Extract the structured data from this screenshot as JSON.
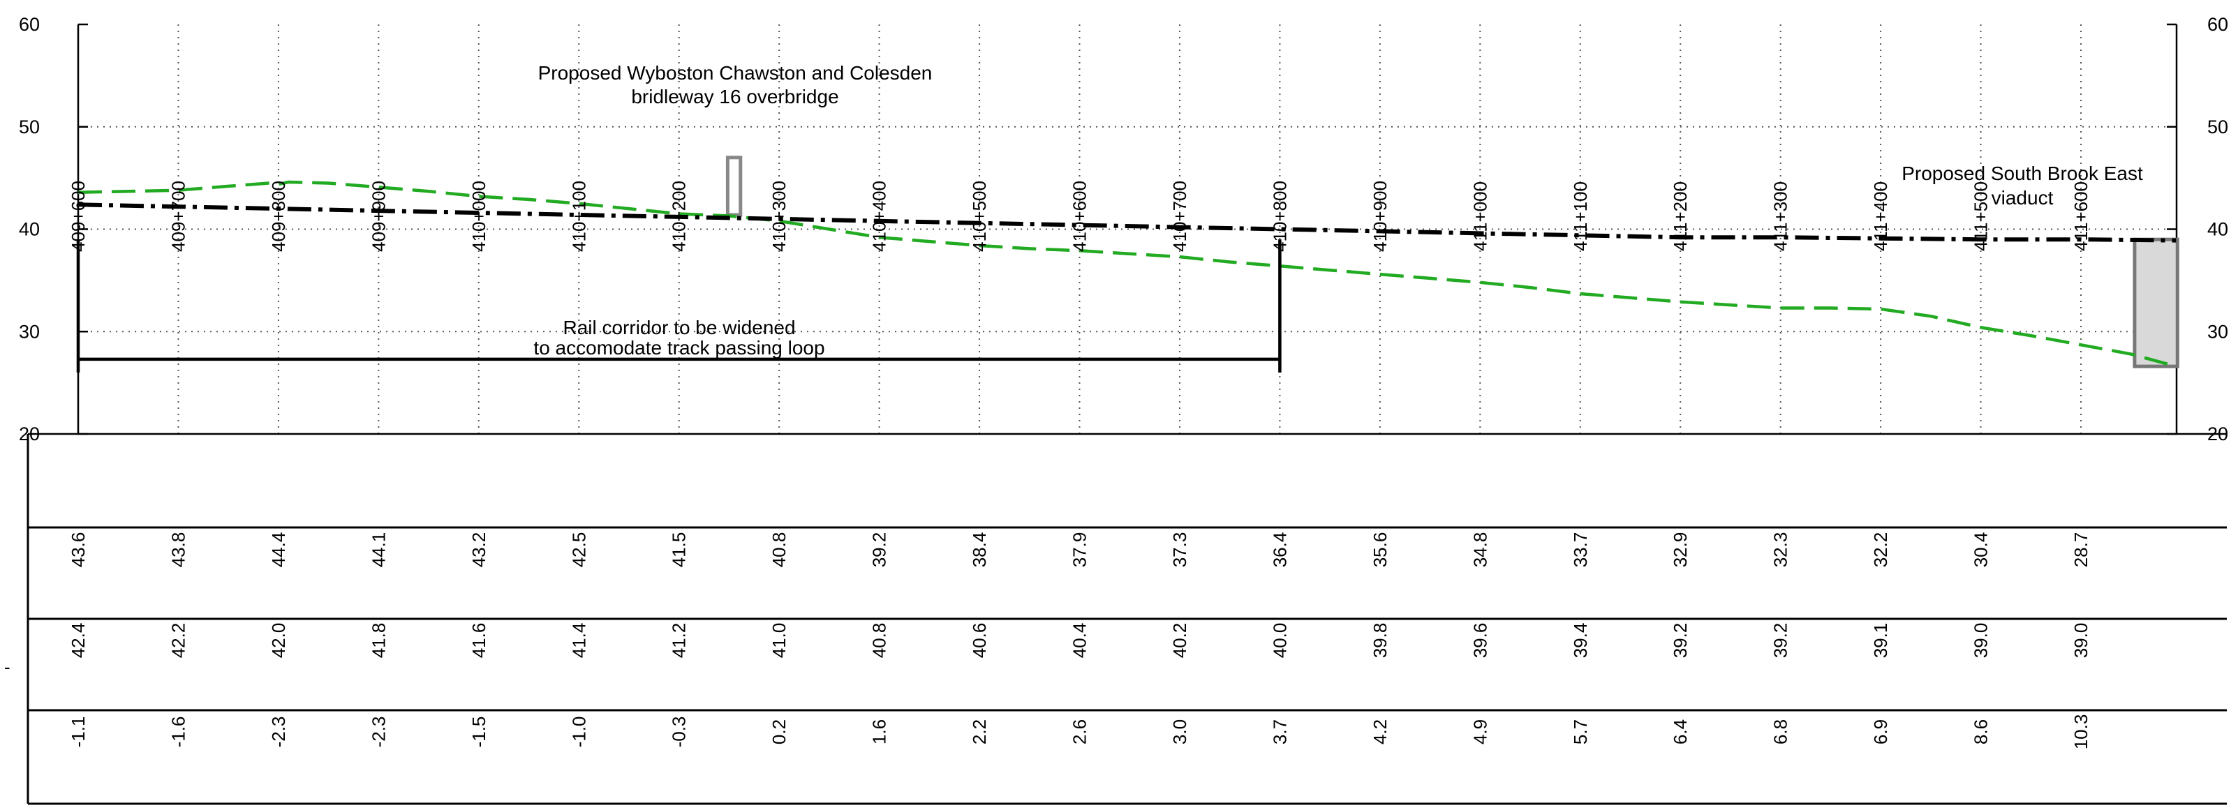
{
  "chart_data": {
    "type": "line",
    "chainages": [
      "409+600",
      "409+700",
      "409+800",
      "409+900",
      "410+000",
      "410+100",
      "410+200",
      "410+300",
      "410+400",
      "410+500",
      "410+600",
      "410+700",
      "410+800",
      "410+900",
      "411+000",
      "411+100",
      "411+200",
      "411+300",
      "411+400",
      "411+500",
      "411+600"
    ],
    "chainage_m": [
      409600,
      409700,
      409800,
      409900,
      410000,
      410100,
      410200,
      410300,
      410400,
      410500,
      410600,
      410700,
      410800,
      410900,
      411000,
      411100,
      411200,
      411300,
      411400,
      411500,
      411600
    ],
    "ylim": [
      20,
      60
    ],
    "yticks": [
      20,
      30,
      40,
      50,
      60
    ],
    "ytick_labels": [
      "20",
      "30",
      "40",
      "50",
      "60"
    ],
    "x_start_m": 409600,
    "x_end_m": 411695,
    "grid": "dotted",
    "series": [
      {
        "key": "ground",
        "color": "#22aa22",
        "style": "dashed",
        "x": [
          409600,
          409650,
          409700,
          409750,
          409790,
          409800,
          409810,
          409850,
          409900,
          409950,
          410000,
          410050,
          410100,
          410150,
          410200,
          410250,
          410300,
          410350,
          410400,
          410450,
          410500,
          410550,
          410600,
          410650,
          410700,
          410750,
          410800,
          410850,
          410900,
          410950,
          411000,
          411050,
          411100,
          411150,
          411200,
          411250,
          411300,
          411350,
          411400,
          411450,
          411500,
          411550,
          411600,
          411650,
          411695
        ],
        "y": [
          43.6,
          43.7,
          43.8,
          44.2,
          44.5,
          44.4,
          44.6,
          44.5,
          44.1,
          43.7,
          43.2,
          42.9,
          42.5,
          42.0,
          41.5,
          41.3,
          40.8,
          40.0,
          39.2,
          38.8,
          38.4,
          38.1,
          37.9,
          37.6,
          37.3,
          36.8,
          36.4,
          36.0,
          35.6,
          35.2,
          34.8,
          34.3,
          33.7,
          33.3,
          32.9,
          32.6,
          32.3,
          32.3,
          32.2,
          31.5,
          30.4,
          29.6,
          28.7,
          27.8,
          26.6
        ]
      },
      {
        "key": "track",
        "color": "#000000",
        "style": "dashdot",
        "x": [
          409600,
          409700,
          409800,
          409900,
          410000,
          410100,
          410200,
          410300,
          410400,
          410500,
          410600,
          410700,
          410800,
          410900,
          411000,
          411100,
          411200,
          411300,
          411400,
          411500,
          411600,
          411695
        ],
        "y": [
          42.4,
          42.2,
          42.0,
          41.8,
          41.6,
          41.4,
          41.2,
          41.0,
          40.8,
          40.6,
          40.4,
          40.2,
          40.0,
          39.8,
          39.6,
          39.4,
          39.2,
          39.2,
          39.1,
          39.0,
          39.0,
          38.9
        ]
      }
    ],
    "structures": [
      {
        "key": "overbridge",
        "x_from": 410250,
        "x_to": 410260,
        "y_from": 41.4,
        "y_to": 47.0,
        "fill": "#ffffff",
        "stroke": "#888888"
      },
      {
        "key": "viaduct",
        "x_from": 411655,
        "x_to": 411695,
        "y_from": 26.6,
        "y_to": 39.0,
        "fill": "#d9d9d9",
        "stroke": "#777777"
      }
    ],
    "annotations": {
      "overbridge": [
        "Proposed Wyboston Chawston and Colesden",
        "bridleway 16 overbridge"
      ],
      "viaduct": [
        "Proposed South Brook East",
        "viaduct"
      ],
      "corridor": [
        "Rail corridor to be widened",
        "to accomodate track passing loop"
      ]
    },
    "corridor_bracket": {
      "x_from": 409600,
      "x_to": 410800,
      "y_level": 27.3,
      "y_top": 39.0,
      "y_bottom": 26.0
    },
    "table_rows": [
      {
        "key": "ground_level",
        "values": [
          "43.6",
          "43.8",
          "44.4",
          "44.1",
          "43.2",
          "42.5",
          "41.5",
          "40.8",
          "39.2",
          "38.4",
          "37.9",
          "37.3",
          "36.4",
          "35.6",
          "34.8",
          "33.7",
          "32.9",
          "32.3",
          "32.2",
          "30.4",
          "28.7"
        ]
      },
      {
        "key": "track_level",
        "values": [
          "42.4",
          "42.2",
          "42.0",
          "41.8",
          "41.6",
          "41.4",
          "41.2",
          "41.0",
          "40.8",
          "40.6",
          "40.4",
          "40.2",
          "40.0",
          "39.8",
          "39.6",
          "39.4",
          "39.2",
          "39.2",
          "39.1",
          "39.0",
          "39.0"
        ]
      },
      {
        "key": "difference",
        "values": [
          "-1.1",
          "-1.6",
          "-2.3",
          "-2.3",
          "-1.5",
          "-1.0",
          "-0.3",
          "0.2",
          "1.6",
          "2.2",
          "2.6",
          "3.0",
          "3.7",
          "4.2",
          "4.9",
          "5.7",
          "6.4",
          "6.8",
          "6.9",
          "8.6",
          "10.3"
        ]
      }
    ],
    "left_dash": "-"
  }
}
